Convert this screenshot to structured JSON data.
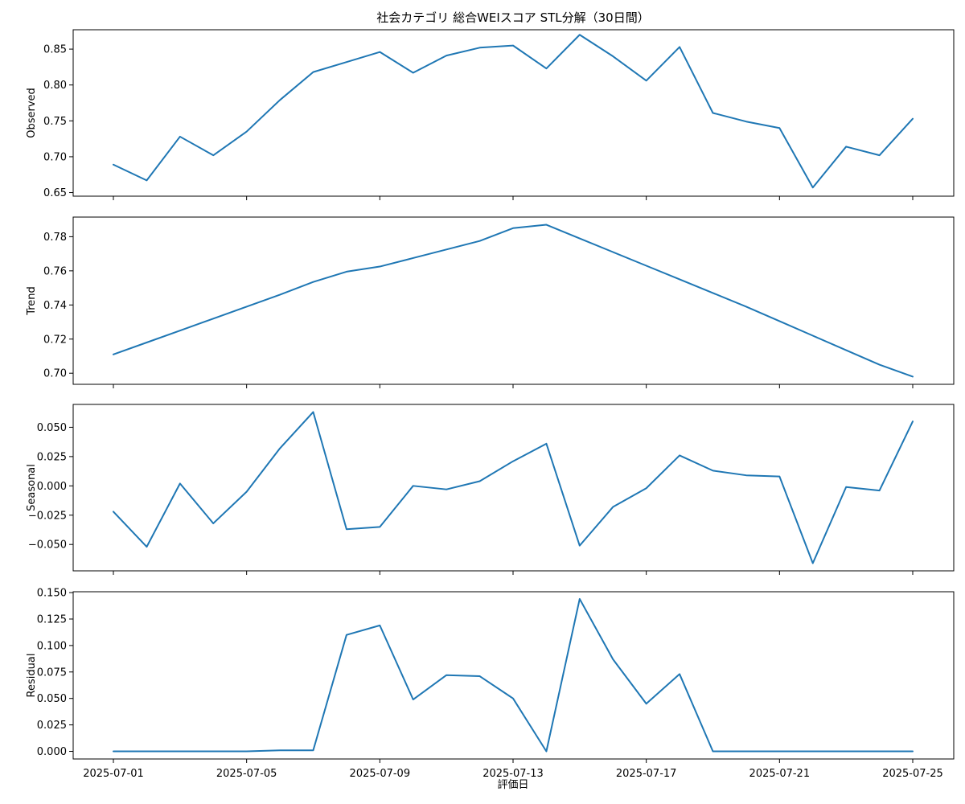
{
  "chart_data": {
    "type": "line",
    "title": "社会カテゴリ 総合WEIスコア STL分解（30日間）",
    "xlabel": "評価日",
    "x": [
      "2025-07-01",
      "2025-07-02",
      "2025-07-03",
      "2025-07-04",
      "2025-07-05",
      "2025-07-06",
      "2025-07-07",
      "2025-07-08",
      "2025-07-09",
      "2025-07-10",
      "2025-07-11",
      "2025-07-12",
      "2025-07-13",
      "2025-07-14",
      "2025-07-15",
      "2025-07-16",
      "2025-07-17",
      "2025-07-18",
      "2025-07-19",
      "2025-07-20",
      "2025-07-21",
      "2025-07-22",
      "2025-07-23",
      "2025-07-24",
      "2025-07-25"
    ],
    "xticks": [
      "2025-07-01",
      "2025-07-05",
      "2025-07-09",
      "2025-07-13",
      "2025-07-17",
      "2025-07-21",
      "2025-07-25"
    ],
    "panels": [
      {
        "ylabel": "Observed",
        "ylim": [
          0.645,
          0.877
        ],
        "yticks": [
          0.65,
          0.7,
          0.75,
          0.8,
          0.85
        ],
        "ytick_labels": [
          "0.65",
          "0.70",
          "0.75",
          "0.80",
          "0.85"
        ],
        "values": [
          0.689,
          0.667,
          0.728,
          0.702,
          0.735,
          0.779,
          0.818,
          0.832,
          0.846,
          0.817,
          0.841,
          0.852,
          0.855,
          0.823,
          0.87,
          0.84,
          0.806,
          0.853,
          0.761,
          0.749,
          0.74,
          0.657,
          0.714,
          0.702,
          0.753
        ]
      },
      {
        "ylabel": "Trend",
        "ylim": [
          0.6935,
          0.7915
        ],
        "yticks": [
          0.7,
          0.72,
          0.74,
          0.76,
          0.78
        ],
        "ytick_labels": [
          "0.70",
          "0.72",
          "0.74",
          "0.76",
          "0.78"
        ],
        "values": [
          0.711,
          0.718,
          0.725,
          0.732,
          0.739,
          0.746,
          0.7535,
          0.7595,
          0.7625,
          0.7675,
          0.7725,
          0.7775,
          0.785,
          0.787,
          0.779,
          0.771,
          0.763,
          0.755,
          0.747,
          0.739,
          0.7305,
          0.722,
          0.7135,
          0.705,
          0.698
        ]
      },
      {
        "ylabel": "Seasonal",
        "ylim": [
          -0.0725,
          0.0695
        ],
        "yticks": [
          -0.05,
          -0.025,
          0.0,
          0.025,
          0.05
        ],
        "ytick_labels": [
          "−0.050",
          "−0.025",
          "0.000",
          "0.025",
          "0.050"
        ],
        "values": [
          -0.022,
          -0.052,
          0.002,
          -0.032,
          -0.005,
          0.032,
          0.063,
          -0.037,
          -0.035,
          0.0,
          -0.003,
          0.004,
          0.021,
          0.036,
          -0.051,
          -0.018,
          -0.002,
          0.026,
          0.013,
          0.009,
          0.008,
          -0.066,
          -0.001,
          -0.004,
          0.055
        ]
      },
      {
        "ylabel": "Residual",
        "ylim": [
          -0.0072,
          0.1508
        ],
        "yticks": [
          0.0,
          0.025,
          0.05,
          0.075,
          0.1,
          0.125,
          0.15
        ],
        "ytick_labels": [
          "0.000",
          "0.025",
          "0.050",
          "0.075",
          "0.100",
          "0.125",
          "0.150"
        ],
        "values": [
          0.0,
          0.0,
          0.0,
          0.0,
          0.0,
          0.001,
          0.001,
          0.11,
          0.119,
          0.049,
          0.072,
          0.071,
          0.05,
          0.0,
          0.144,
          0.087,
          0.045,
          0.073,
          0.0,
          0.0,
          0.0,
          0.0,
          0.0,
          0.0,
          0.0
        ]
      }
    ],
    "grid": false,
    "legend": "none",
    "colors": {
      "line": "#1f77b4"
    }
  }
}
